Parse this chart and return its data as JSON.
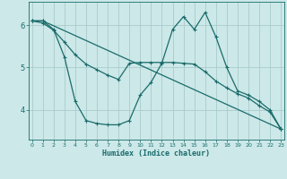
{
  "xlabel": "Humidex (Indice chaleur)",
  "background_color": "#cce8e8",
  "grid_color": "#aacccc",
  "line_color": "#1a6b6b",
  "x_ticks": [
    0,
    1,
    2,
    3,
    4,
    5,
    6,
    7,
    8,
    9,
    10,
    11,
    12,
    13,
    14,
    15,
    16,
    17,
    18,
    19,
    20,
    21,
    22,
    23
  ],
  "y_ticks": [
    4,
    5,
    6
  ],
  "xlim": [
    -0.3,
    23.3
  ],
  "ylim": [
    3.3,
    6.55
  ],
  "series1_x": [
    0,
    1,
    2,
    3,
    4,
    5,
    6,
    7,
    8,
    9,
    10,
    11,
    12,
    13,
    14,
    15,
    16,
    17,
    18,
    19,
    20,
    21,
    22,
    23
  ],
  "series1_y": [
    6.1,
    6.1,
    5.9,
    5.25,
    4.2,
    3.75,
    3.68,
    3.65,
    3.65,
    3.75,
    4.35,
    4.65,
    5.1,
    5.9,
    6.2,
    5.9,
    6.3,
    5.72,
    5.0,
    4.45,
    4.35,
    4.2,
    4.0,
    3.55
  ],
  "series2_x": [
    0,
    1,
    23
  ],
  "series2_y": [
    6.1,
    6.1,
    3.55
  ],
  "series3_x": [
    0,
    1,
    2,
    3,
    4,
    5,
    6,
    7,
    8,
    9,
    10,
    11,
    12,
    13,
    14,
    15,
    16,
    17,
    18,
    19,
    20,
    21,
    22,
    23
  ],
  "series3_y": [
    6.1,
    6.05,
    5.88,
    5.6,
    5.3,
    5.08,
    4.95,
    4.82,
    4.72,
    5.1,
    5.12,
    5.12,
    5.12,
    5.12,
    5.1,
    5.08,
    4.9,
    4.68,
    4.52,
    4.38,
    4.28,
    4.1,
    3.95,
    3.55
  ]
}
